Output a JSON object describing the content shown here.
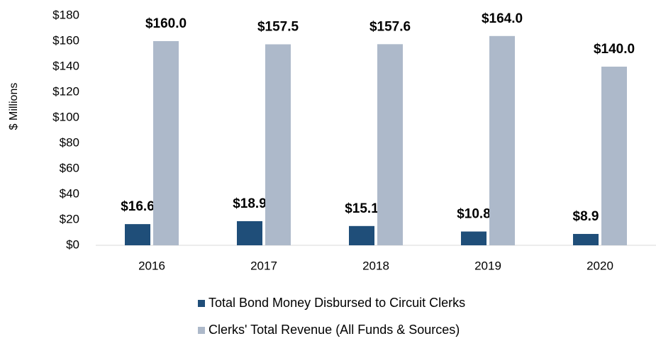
{
  "chart_data": {
    "type": "bar",
    "y_axis_label": "$ Millions",
    "categories": [
      "2016",
      "2017",
      "2018",
      "2019",
      "2020"
    ],
    "series": [
      {
        "name": "Total Bond Money Disbursed to Circuit Clerks",
        "color": "#1f4e79",
        "values": [
          16.6,
          18.9,
          15.1,
          10.8,
          8.9
        ],
        "value_labels": [
          "$16.6",
          "$18.9",
          "$15.1",
          "$10.8",
          "$8.9"
        ]
      },
      {
        "name": "Clerks' Total Revenue (All Funds & Sources)",
        "color": "#adb9ca",
        "values": [
          160.0,
          157.5,
          157.6,
          164.0,
          140.0
        ],
        "value_labels": [
          "$160.0",
          "$157.5",
          "$157.6",
          "$164.0",
          "$140.0"
        ]
      }
    ],
    "ylim": [
      0,
      180
    ],
    "yticks": [
      {
        "value": 0,
        "label": "$0"
      },
      {
        "value": 20,
        "label": "$20"
      },
      {
        "value": 40,
        "label": "$40"
      },
      {
        "value": 60,
        "label": "$60"
      },
      {
        "value": 80,
        "label": "$80"
      },
      {
        "value": 100,
        "label": "$100"
      },
      {
        "value": 120,
        "label": "$120"
      },
      {
        "value": 140,
        "label": "$140"
      },
      {
        "value": 160,
        "label": "$160"
      },
      {
        "value": 180,
        "label": "$180"
      }
    ],
    "grid": false,
    "legend": "bottom"
  }
}
